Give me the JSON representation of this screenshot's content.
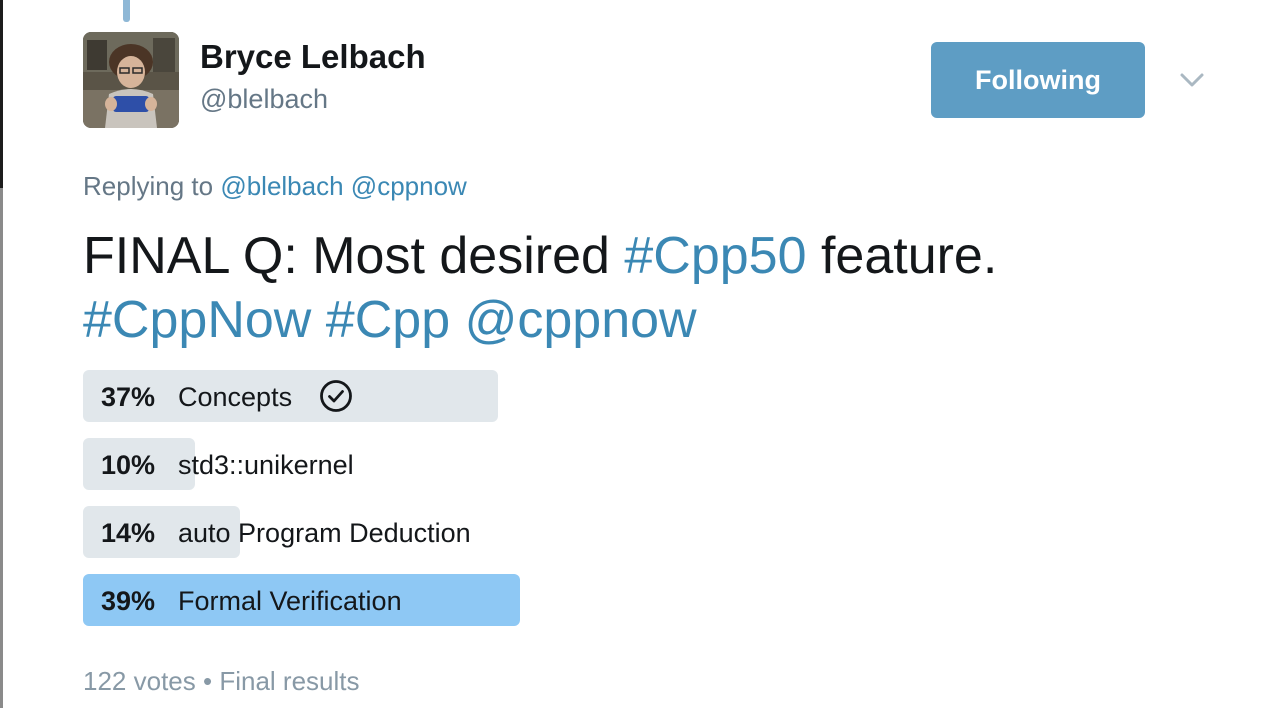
{
  "author": {
    "name": "Bryce Lelbach",
    "handle": "@blelbach"
  },
  "follow_button": {
    "label": "Following"
  },
  "menu": {
    "icon": "chevron-down-icon"
  },
  "reply_context": {
    "prefix": "Replying to",
    "mentions": [
      "@blelbach",
      "@cppnow"
    ]
  },
  "tweet": {
    "line1_text": "FINAL Q: Most desired ",
    "line1_hashtag": "#Cpp50",
    "line1_suffix": " feature.",
    "line2_tags": [
      "#CppNow",
      "#Cpp",
      "@cppnow"
    ]
  },
  "poll": {
    "choices": [
      {
        "percent_label": "37%",
        "percent": 37,
        "label": "Concepts",
        "selected_by_user": true
      },
      {
        "percent_label": "10%",
        "percent": 10,
        "label": "std3::unikernel",
        "selected_by_user": false
      },
      {
        "percent_label": "14%",
        "percent": 14,
        "label": "auto Program Deduction",
        "selected_by_user": false
      },
      {
        "percent_label": "39%",
        "percent": 39,
        "label": "Formal Verification",
        "selected_by_user": false,
        "winner": true
      }
    ],
    "votes": "122 votes",
    "separator": "•",
    "status": "Final results"
  },
  "colors": {
    "link": "#3b88b4",
    "follow_button": "#5e9dc4",
    "poll_bar": "#e1e7eb",
    "poll_bar_winner": "#8ec8f4",
    "secondary_text": "#657786"
  }
}
